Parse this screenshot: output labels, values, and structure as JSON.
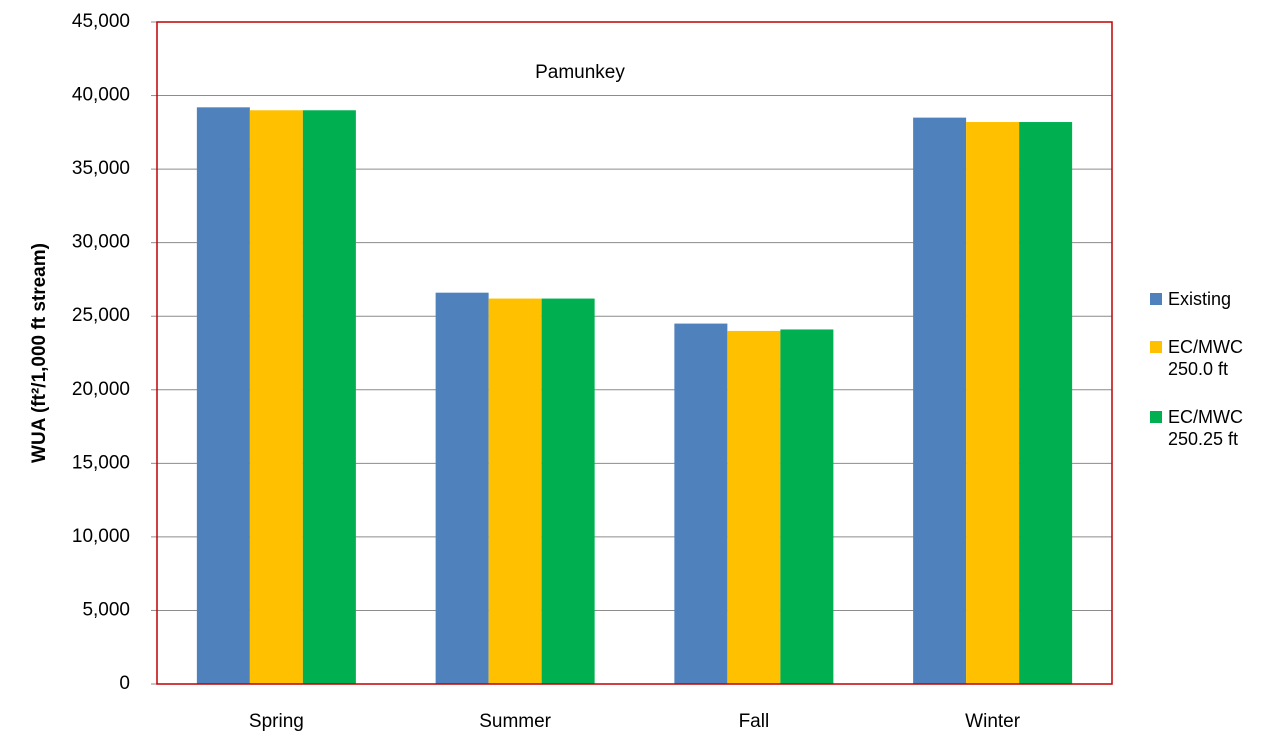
{
  "chart_data": {
    "type": "bar",
    "title": "Pamunkey",
    "y_label": "WUA (ft²/1,000 ft stream)",
    "categories": [
      "Spring",
      "Summer",
      "Fall",
      "Winter"
    ],
    "series": [
      {
        "name": "Existing",
        "color": "#4f81bd",
        "values": [
          39200,
          26600,
          24500,
          38500
        ]
      },
      {
        "name": "EC/MWC 250.0 ft",
        "color": "#ffc000",
        "values": [
          39000,
          26200,
          24000,
          38200
        ]
      },
      {
        "name": "EC/MWC 250.25 ft",
        "color": "#00b050",
        "values": [
          39000,
          26200,
          24100,
          38200
        ]
      }
    ],
    "ylim": [
      0,
      45000
    ],
    "yticks": [
      0,
      {
        "value": 5000,
        "label": "5,000"
      },
      {
        "value": 10000,
        "label": "10,000"
      },
      {
        "value": 15000,
        "label": "15,000"
      },
      {
        "value": 20000,
        "label": "20,000"
      },
      {
        "value": 25000,
        "label": "25,000"
      },
      {
        "value": 30000,
        "label": "30,000"
      },
      {
        "value": 35000,
        "label": "35,000"
      },
      {
        "value": 40000,
        "label": "40,000"
      },
      {
        "value": 45000,
        "label": "45,000"
      }
    ],
    "grid": true,
    "legend": "right"
  }
}
